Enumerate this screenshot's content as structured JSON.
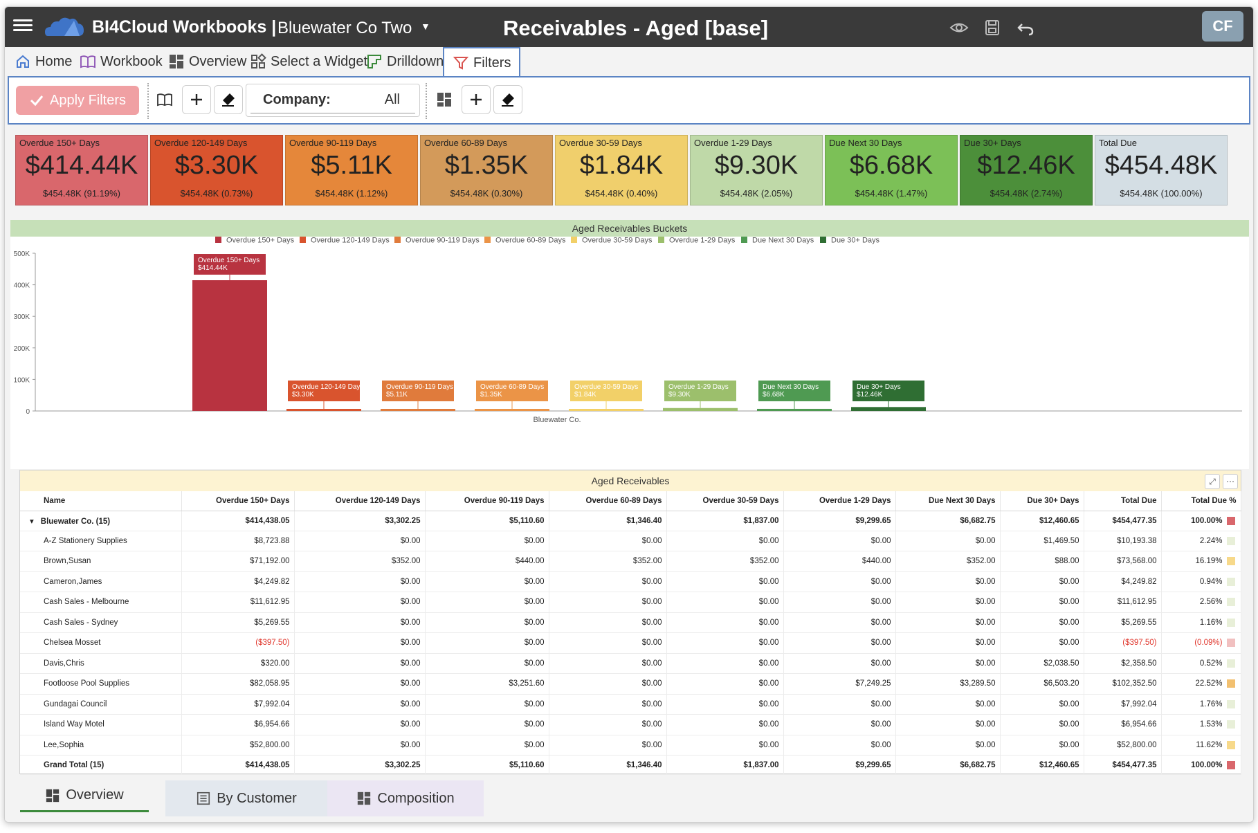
{
  "header": {
    "brand": "BI4Cloud Workbooks |",
    "company": "Bluewater Co Two",
    "title": "Receivables - Aged [base]",
    "avatar": "CF",
    "icons": [
      "menu-icon",
      "eye-icon",
      "save-icon",
      "undo-icon"
    ]
  },
  "nav": {
    "tabs": [
      {
        "label": "Home",
        "icon": "home-icon"
      },
      {
        "label": "Workbook",
        "icon": "book-icon"
      },
      {
        "label": "Overview",
        "icon": "dashboard-icon"
      },
      {
        "label": "Select a Widget",
        "icon": "widget-icon"
      },
      {
        "label": "Drilldown",
        "icon": "drilldown-icon"
      },
      {
        "label": "Filters",
        "icon": "filter-icon",
        "active": true
      }
    ]
  },
  "toolbar": {
    "apply_label": "Apply Filters",
    "company_label": "Company:",
    "company_value": "All"
  },
  "kpis": [
    {
      "label": "Overdue 150+ Days",
      "value": "$414.44K",
      "sub": "$454.48K (91.19%)",
      "color": "#d9676c"
    },
    {
      "label": "Overdue 120-149 Days",
      "value": "$3.30K",
      "sub": "$454.48K (0.73%)",
      "color": "#d9542e"
    },
    {
      "label": "Overdue 90-119 Days",
      "value": "$5.11K",
      "sub": "$454.48K (1.12%)",
      "color": "#e5873a"
    },
    {
      "label": "Overdue 60-89 Days",
      "value": "$1.35K",
      "sub": "$454.48K (0.30%)",
      "color": "#d39a5a"
    },
    {
      "label": "Overdue 30-59 Days",
      "value": "$1.84K",
      "sub": "$454.48K (0.40%)",
      "color": "#f0cf6c"
    },
    {
      "label": "Overdue 1-29 Days",
      "value": "$9.30K",
      "sub": "$454.48K (2.05%)",
      "color": "#bfd9a8"
    },
    {
      "label": "Due Next 30 Days",
      "value": "$6.68K",
      "sub": "$454.48K (1.47%)",
      "color": "#7cc057"
    },
    {
      "label": "Due 30+ Days",
      "value": "$12.46K",
      "sub": "$454.48K (2.74%)",
      "color": "#4c8f3a"
    },
    {
      "label": "Total Due",
      "value": "$454.48K",
      "sub": "$454.48K (100.00%)",
      "color": "#d4dee4"
    }
  ],
  "chart_data": {
    "type": "bar",
    "title": "Aged Receivables Buckets",
    "xlabel": "Bluewater Co.",
    "ylabel": "",
    "categories": [
      "Bluewater Co."
    ],
    "ylim": [
      0,
      500000
    ],
    "yticks": [
      "0",
      "100K",
      "200K",
      "300K",
      "400K",
      "500K"
    ],
    "legend_position": "top",
    "series": [
      {
        "name": "Overdue 150+ Days",
        "values": [
          414438.05
        ],
        "label": "$414.44K",
        "color": "#b83340"
      },
      {
        "name": "Overdue 120-149 Days",
        "values": [
          3302.25
        ],
        "label": "$3.30K",
        "color": "#d9542e"
      },
      {
        "name": "Overdue 90-119 Days",
        "values": [
          5110.6
        ],
        "label": "$5.11K",
        "color": "#e07b3c"
      },
      {
        "name": "Overdue 60-89 Days",
        "values": [
          1346.4
        ],
        "label": "$1.35K",
        "color": "#eb9447"
      },
      {
        "name": "Overdue 30-59 Days",
        "values": [
          1837.0
        ],
        "label": "$1.84K",
        "color": "#f2d068"
      },
      {
        "name": "Overdue 1-29 Days",
        "values": [
          9299.65
        ],
        "label": "$9.30K",
        "color": "#9cbf6c"
      },
      {
        "name": "Due Next 30 Days",
        "values": [
          6682.75
        ],
        "label": "$6.68K",
        "color": "#4f9a52"
      },
      {
        "name": "Due 30+ Days",
        "values": [
          12460.65
        ],
        "label": "$12.46K",
        "color": "#2f6e33"
      }
    ]
  },
  "table": {
    "title": "Aged Receivables",
    "columns": [
      "Name",
      "Overdue 150+ Days",
      "Overdue 120-149 Days",
      "Overdue 90-119 Days",
      "Overdue 60-89 Days",
      "Overdue 30-59 Days",
      "Overdue 1-29 Days",
      "Due Next 30 Days",
      "Due 30+ Days",
      "Total Due",
      "Total Due %"
    ],
    "group": {
      "name": "Bluewater Co. (15)",
      "toggle": "▾",
      "cells": [
        "$414,438.05",
        "$3,302.25",
        "$5,110.60",
        "$1,346.40",
        "$1,837.00",
        "$9,299.65",
        "$6,682.75",
        "$12,460.65",
        "$454,477.35",
        "100.00%"
      ],
      "pct": 100.0
    },
    "rows": [
      {
        "name": "A-Z Stationery Supplies",
        "cells": [
          "$8,723.88",
          "$0.00",
          "$0.00",
          "$0.00",
          "$0.00",
          "$0.00",
          "$0.00",
          "$1,469.50",
          "$10,193.38",
          "2.24%"
        ],
        "pct": 2.24
      },
      {
        "name": "Brown,Susan",
        "cells": [
          "$71,192.00",
          "$352.00",
          "$440.00",
          "$352.00",
          "$352.00",
          "$440.00",
          "$352.00",
          "$88.00",
          "$73,568.00",
          "16.19%"
        ],
        "pct": 16.19
      },
      {
        "name": "Cameron,James",
        "cells": [
          "$4,249.82",
          "$0.00",
          "$0.00",
          "$0.00",
          "$0.00",
          "$0.00",
          "$0.00",
          "$0.00",
          "$4,249.82",
          "0.94%"
        ],
        "pct": 0.94
      },
      {
        "name": "Cash Sales - Melbourne",
        "cells": [
          "$11,612.95",
          "$0.00",
          "$0.00",
          "$0.00",
          "$0.00",
          "$0.00",
          "$0.00",
          "$0.00",
          "$11,612.95",
          "2.56%"
        ],
        "pct": 2.56
      },
      {
        "name": "Cash Sales - Sydney",
        "cells": [
          "$5,269.55",
          "$0.00",
          "$0.00",
          "$0.00",
          "$0.00",
          "$0.00",
          "$0.00",
          "$0.00",
          "$5,269.55",
          "1.16%"
        ],
        "pct": 1.16
      },
      {
        "name": "Chelsea Mosset",
        "cells": [
          "($397.50)",
          "$0.00",
          "$0.00",
          "$0.00",
          "$0.00",
          "$0.00",
          "$0.00",
          "$0.00",
          "($397.50)",
          "(0.09%)"
        ],
        "pct": -0.09,
        "negative": true
      },
      {
        "name": "Davis,Chris",
        "cells": [
          "$320.00",
          "$0.00",
          "$0.00",
          "$0.00",
          "$0.00",
          "$0.00",
          "$0.00",
          "$2,038.50",
          "$2,358.50",
          "0.52%"
        ],
        "pct": 0.52
      },
      {
        "name": "Footloose Pool Supplies",
        "cells": [
          "$82,058.95",
          "$0.00",
          "$3,251.60",
          "$0.00",
          "$0.00",
          "$7,249.25",
          "$3,289.50",
          "$6,503.20",
          "$102,352.50",
          "22.52%"
        ],
        "pct": 22.52
      },
      {
        "name": "Gundagai Council",
        "cells": [
          "$7,992.04",
          "$0.00",
          "$0.00",
          "$0.00",
          "$0.00",
          "$0.00",
          "$0.00",
          "$0.00",
          "$7,992.04",
          "1.76%"
        ],
        "pct": 1.76
      },
      {
        "name": "Island Way Motel",
        "cells": [
          "$6,954.66",
          "$0.00",
          "$0.00",
          "$0.00",
          "$0.00",
          "$0.00",
          "$0.00",
          "$0.00",
          "$6,954.66",
          "1.53%"
        ],
        "pct": 1.53
      },
      {
        "name": "Lee,Sophia",
        "cells": [
          "$52,800.00",
          "$0.00",
          "$0.00",
          "$0.00",
          "$0.00",
          "$0.00",
          "$0.00",
          "$0.00",
          "$52,800.00",
          "11.62%"
        ],
        "pct": 11.62
      }
    ],
    "grand": {
      "name": "Grand Total (15)",
      "cells": [
        "$414,438.05",
        "$3,302.25",
        "$5,110.60",
        "$1,346.40",
        "$1,837.00",
        "$9,299.65",
        "$6,682.75",
        "$12,460.65",
        "$454,477.35",
        "100.00%"
      ],
      "pct": 100.0
    }
  },
  "bottom_tabs": [
    {
      "label": "Overview",
      "icon": "dashboard-icon",
      "active": true
    },
    {
      "label": "By Customer",
      "icon": "list-icon"
    },
    {
      "label": "Composition",
      "icon": "dashboard-icon"
    }
  ],
  "colors": {
    "accent": "#5b84c4",
    "apply_button": "#f0a0a3",
    "topbar": "#3a3a3a"
  }
}
